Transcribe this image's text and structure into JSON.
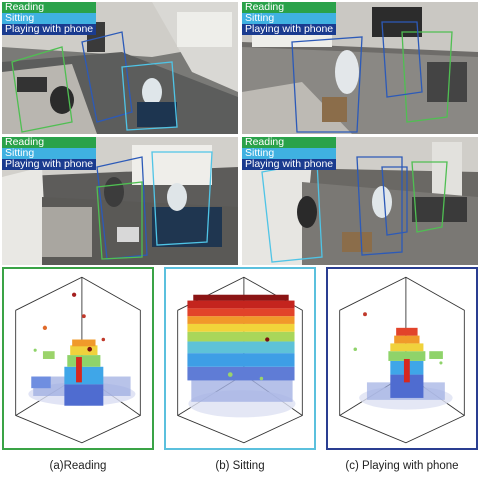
{
  "legend": {
    "reading": {
      "label": "Reading",
      "color": "#2aa24a"
    },
    "sitting": {
      "label": "Sitting",
      "color": "#3fb1e1"
    },
    "phone": {
      "label": "Playing with phone",
      "color": "#1a3b8f"
    }
  },
  "frame_colors": {
    "reading": "#3aa346",
    "sitting": "#5bc0dd",
    "phone": "#2a3e91"
  },
  "captions": {
    "reading": "(a)Reading",
    "sitting": "(b) Sitting",
    "phone": "(c) Playing with phone"
  }
}
